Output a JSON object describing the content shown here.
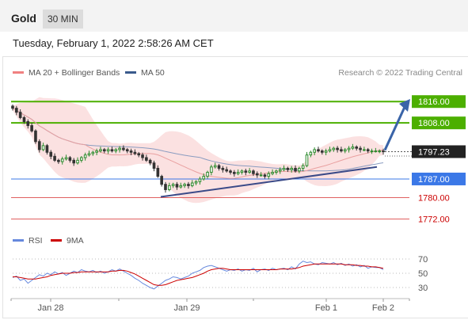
{
  "header": {
    "symbol": "Gold",
    "timeframe": "30 MIN"
  },
  "datetime": "Tuesday, February 1, 2022 2:58:26 AM CET",
  "legend": {
    "ma20": "MA 20 + Bollinger Bands",
    "ma50": "MA 50",
    "credit": "Research © 2022 Trading Central"
  },
  "rsi_legend": {
    "rsi": "RSI",
    "ma9": "9MA"
  },
  "colors": {
    "ma20": "#f08080",
    "ma50": "#3a5a8c",
    "green_level": "#4caf00",
    "blue_level": "#3b78e7",
    "red_level": "#e06060",
    "up_candle": "#2e8b2e",
    "down_candle": "#333333",
    "rsi": "#6688dd",
    "rsi_ma": "#cc0000",
    "arrow": "#3a64a8",
    "bollinger": "#fadada"
  },
  "chart_data": {
    "type": "candlestick",
    "x_ticks": [
      "Jan 28",
      "Jan 29",
      "Feb 1",
      "Feb 2"
    ],
    "price_ylim": [
      1768,
      1822
    ],
    "last_price": "1797.23",
    "levels": [
      {
        "label": "1816.00",
        "value": 1816.0,
        "kind": "resistance"
      },
      {
        "label": "1808.00",
        "value": 1808.0,
        "kind": "resistance"
      },
      {
        "label": "1787.00",
        "value": 1787.0,
        "kind": "pivot"
      },
      {
        "label": "1780.00",
        "value": 1780.0,
        "kind": "support"
      },
      {
        "label": "1772.00",
        "value": 1772.0,
        "kind": "support"
      }
    ],
    "close": [
      1813.5,
      1812,
      1810,
      1808.5,
      1807,
      1805,
      1801,
      1798,
      1799.5,
      1797,
      1795.5,
      1794,
      1793.5,
      1794.5,
      1795,
      1794,
      1793,
      1794,
      1795,
      1796,
      1796.5,
      1797,
      1797.5,
      1798,
      1797.5,
      1798,
      1797.5,
      1798,
      1798.5,
      1798,
      1797.5,
      1797,
      1796.5,
      1796,
      1795,
      1794,
      1793,
      1791,
      1788,
      1785,
      1783,
      1784.5,
      1785,
      1784,
      1784.5,
      1785,
      1784.5,
      1785.5,
      1786,
      1787,
      1788,
      1789.5,
      1791.5,
      1792,
      1791,
      1790.5,
      1790,
      1789.5,
      1789,
      1789.5,
      1790,
      1789.5,
      1790,
      1789,
      1788.5,
      1788.5,
      1788,
      1789,
      1789.5,
      1790,
      1790.5,
      1791,
      1790.5,
      1791,
      1790,
      1791,
      1792,
      1796,
      1797,
      1798,
      1797.5,
      1797,
      1797.5,
      1798,
      1798.5,
      1798,
      1797.5,
      1798,
      1798.5,
      1799,
      1798.5,
      1798,
      1798,
      1797.5,
      1797.5,
      1797.5,
      1797.5,
      1797.23
    ],
    "rsi_yticks": [
      70,
      50,
      30
    ],
    "rsi": [
      44,
      46,
      40,
      42,
      36,
      40,
      44,
      48,
      46,
      50,
      48,
      52,
      49,
      51,
      47,
      50,
      53,
      51,
      55,
      53,
      52,
      54,
      51,
      53,
      50,
      52,
      55,
      53,
      56,
      53,
      50,
      47,
      43,
      40,
      36,
      33,
      30,
      28,
      32,
      36,
      40,
      42,
      45,
      44,
      42,
      44,
      46,
      50,
      52,
      54,
      58,
      60,
      61,
      59,
      57,
      55,
      53,
      55,
      54,
      56,
      53,
      55,
      54,
      57,
      52,
      55,
      56,
      54,
      57,
      55,
      56,
      57,
      55,
      59,
      56,
      63,
      67,
      65,
      66,
      63,
      62,
      65,
      64,
      63,
      65,
      62,
      64,
      61,
      63,
      60,
      62,
      59,
      61,
      57,
      59,
      58,
      58,
      55
    ],
    "rsi_ma": [
      45,
      45,
      44,
      43,
      42,
      42,
      42,
      43,
      44,
      45,
      47,
      48,
      49,
      50,
      50,
      50,
      51,
      51,
      52,
      52,
      52,
      52,
      52,
      52,
      52,
      52,
      53,
      53,
      54,
      54,
      53,
      51,
      49,
      46,
      43,
      40,
      37,
      34,
      33,
      33,
      34,
      36,
      38,
      40,
      41,
      42,
      43,
      44,
      46,
      48,
      50,
      53,
      55,
      56,
      57,
      57,
      56,
      55,
      55,
      55,
      55,
      55,
      55,
      55,
      55,
      55,
      55,
      55,
      55,
      55,
      56,
      56,
      56,
      56,
      57,
      58,
      60,
      61,
      62,
      63,
      63,
      63,
      63,
      63,
      63,
      63,
      63,
      62,
      62,
      62,
      61,
      61,
      60,
      60,
      59,
      59,
      58,
      57
    ]
  }
}
